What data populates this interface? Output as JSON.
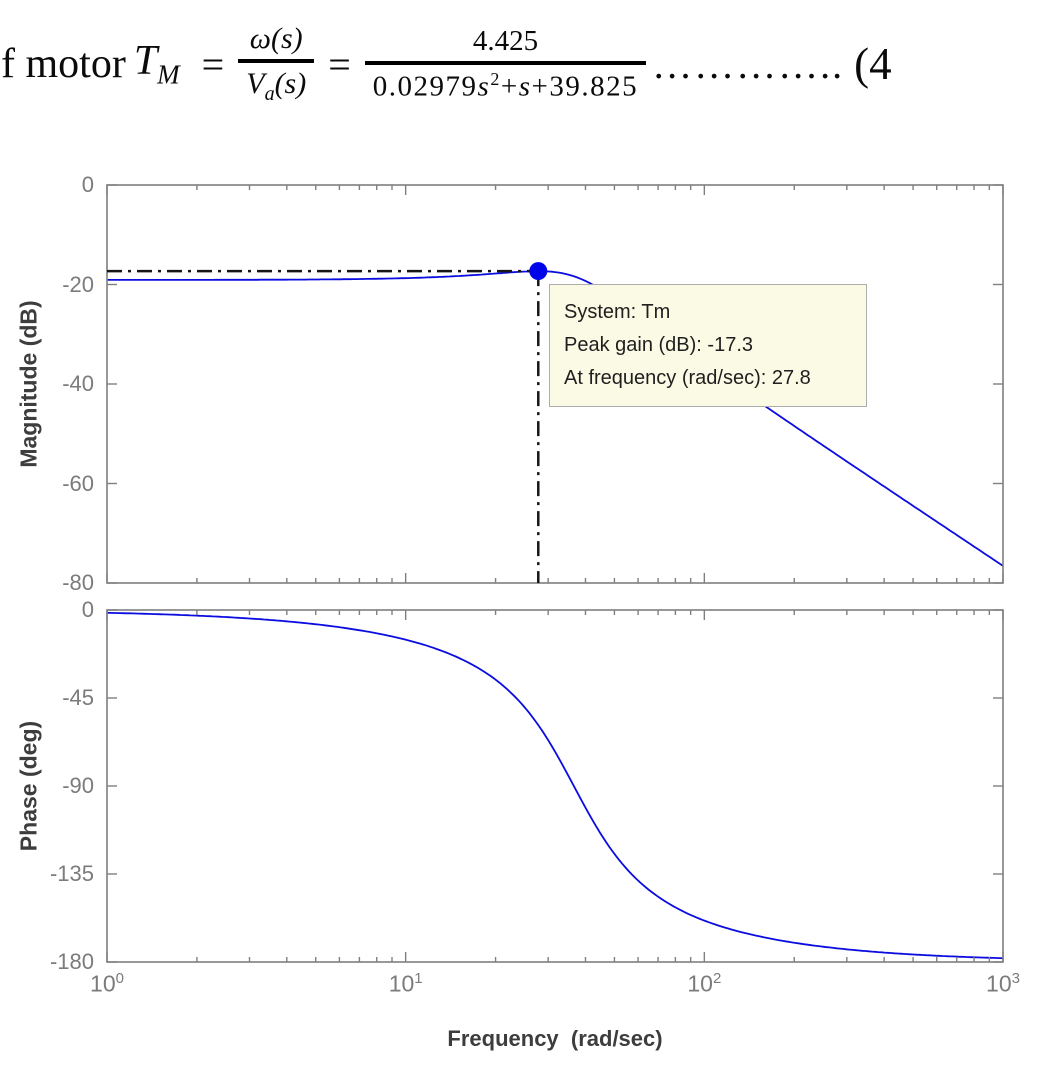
{
  "colors": {
    "curve": "#0b0ce0",
    "marker": "#0004e8",
    "axis": "#7f7f7f",
    "tick_label": "#7b7b7b",
    "axis_label": "#3d3d3d",
    "crosshair": "#161616",
    "tooltip_bg": "#fbfae5",
    "tooltip_border": "#adadad",
    "tooltip_text": "#1f1f1f",
    "equation_text": "#0b0b0b"
  },
  "equation": {
    "lead": "f motor",
    "tf_symbol": "T",
    "tf_sub": "M",
    "equals": "=",
    "frac1_num": "ω(s)",
    "frac1_den_V": "V",
    "frac1_den_sub": "a",
    "frac1_den_rest": "(s)",
    "frac2_num": "4.425",
    "frac2_den_c1": "0.02979",
    "frac2_den_s1": "s",
    "frac2_den_exp": "2",
    "frac2_den_plus1": "+",
    "frac2_den_s2": "s",
    "frac2_den_plus2": "+",
    "frac2_den_c2": "39.825",
    "dots": "…………..",
    "ref": "(4"
  },
  "tooltip": {
    "lines": [
      "System: Tm",
      "Peak gain (dB): -17.3",
      "At frequency (rad/sec): 27.8"
    ]
  },
  "chart_data": [
    {
      "type": "line",
      "title": "",
      "ylabel": "Magnitude (dB)",
      "xscale": "log",
      "xlim": [
        1,
        1000
      ],
      "ylim": [
        -80,
        0
      ],
      "yticks": [
        0,
        -20,
        -40,
        -60,
        -80
      ],
      "ytick_labels": [
        "0",
        "-20",
        "-40",
        "-60",
        "-80"
      ],
      "grid": false,
      "legend": "none",
      "tf": {
        "numerator": [
          4.425
        ],
        "denominator": [
          0.02979,
          1,
          39.825
        ]
      },
      "peak": {
        "freq_rad_s": 27.8,
        "gain_db": -17.3
      },
      "series": [
        {
          "name": "Tm magnitude",
          "x": [
            1,
            2,
            3,
            4,
            6,
            8,
            10,
            13,
            16,
            20,
            24,
            27.8,
            30,
            33,
            36.6,
            40,
            45,
            50,
            60,
            70,
            85,
            100,
            130,
            170,
            220,
            300,
            400,
            550,
            700,
            1000
          ],
          "y": [
            -19.1,
            -19.07,
            -19.05,
            -19.0,
            -18.95,
            -18.85,
            -18.7,
            -18.5,
            -18.2,
            -17.8,
            -17.5,
            -17.3,
            -17.4,
            -17.7,
            -18.3,
            -19.3,
            -21.0,
            -22.8,
            -26.2,
            -29.2,
            -32.9,
            -35.9,
            -40.7,
            -45.6,
            -50.1,
            -55.6,
            -60.6,
            -66.2,
            -70.4,
            -76.6
          ]
        }
      ]
    },
    {
      "type": "line",
      "title": "",
      "ylabel": "Phase (deg)",
      "xlabel": "Frequency  (rad/sec)",
      "xscale": "log",
      "xlim": [
        1,
        1000
      ],
      "ylim": [
        -180,
        0
      ],
      "yticks": [
        0,
        -45,
        -90,
        -135,
        -180
      ],
      "ytick_labels": [
        "0",
        "-45",
        "-90",
        "-135",
        "-180"
      ],
      "xtick_labels": [
        {
          "base": "10",
          "exp": "0"
        },
        {
          "base": "10",
          "exp": "1"
        },
        {
          "base": "10",
          "exp": "2"
        },
        {
          "base": "10",
          "exp": "3"
        }
      ],
      "grid": false,
      "legend": "none",
      "series": [
        {
          "name": "Tm phase",
          "x": [
            1,
            2,
            3,
            4,
            6,
            8,
            10,
            13,
            16,
            20,
            24,
            27.8,
            30,
            33,
            36.6,
            40,
            45,
            50,
            60,
            70,
            85,
            100,
            130,
            170,
            220,
            300,
            400,
            550,
            700,
            1000
          ],
          "y": [
            -1.4,
            -2.9,
            -4.3,
            -5.8,
            -8.8,
            -11.9,
            -15.2,
            -20.5,
            -26.4,
            -35.6,
            -46.6,
            -58.9,
            -66.5,
            -77.4,
            -90.1,
            -101.1,
            -114.5,
            -124.7,
            -138.4,
            -146.6,
            -154.1,
            -158.8,
            -164.3,
            -168.3,
            -171.1,
            -173.5,
            -175.2,
            -176.5,
            -177.3,
            -178.1
          ]
        }
      ]
    }
  ]
}
